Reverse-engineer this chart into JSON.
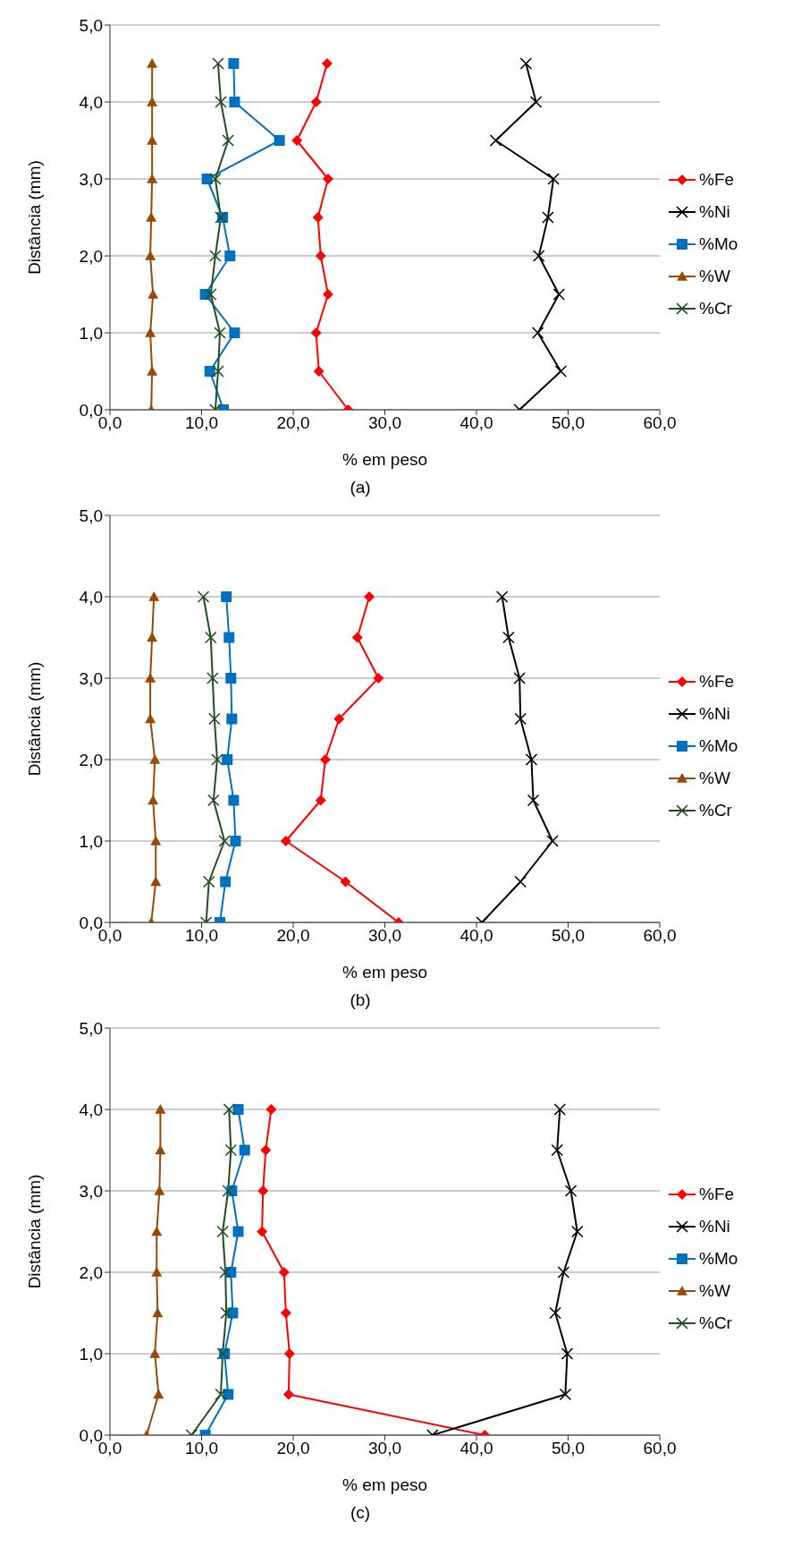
{
  "chart_data": [
    {
      "type": "line",
      "xlabel": "% em peso",
      "ylabel": "Distância (mm)",
      "annotations": [
        "(a)"
      ],
      "xlim": [
        0,
        60
      ],
      "ylim": [
        0,
        5
      ],
      "xticks": [
        {
          "value": 0,
          "label": "0,0"
        },
        {
          "value": 10,
          "label": "10,0"
        },
        {
          "value": 20,
          "label": "20,0"
        },
        {
          "value": 30,
          "label": "30,0"
        },
        {
          "value": 40,
          "label": "40,0"
        },
        {
          "value": 50,
          "label": "50,0"
        },
        {
          "value": 60,
          "label": "60,0"
        }
      ],
      "yticks": [
        {
          "value": 0,
          "label": "0,0"
        },
        {
          "value": 1,
          "label": "1,0"
        },
        {
          "value": 2,
          "label": "2,0"
        },
        {
          "value": 3,
          "label": "3,0"
        },
        {
          "value": 4,
          "label": "4,0"
        },
        {
          "value": 5,
          "label": "5,0"
        }
      ],
      "grid": "y",
      "legend": "right",
      "series": [
        {
          "name": "%Fe",
          "color": "#ff0000",
          "marker": "diamond",
          "x": [
            23.7,
            22.5,
            20.4,
            23.8,
            22.7,
            23.0,
            23.8,
            22.5,
            22.8,
            26.0
          ],
          "values": [
            4.5,
            4.0,
            3.5,
            3.0,
            2.5,
            2.0,
            1.5,
            1.0,
            0.5,
            0
          ]
        },
        {
          "name": "%Ni",
          "color": "#000000",
          "marker": "cross",
          "x": [
            45.4,
            46.5,
            42.1,
            48.4,
            47.8,
            46.8,
            49.0,
            46.7,
            49.2,
            44.7
          ],
          "values": [
            4.5,
            4.0,
            3.5,
            3.0,
            2.5,
            2.0,
            1.5,
            1.0,
            0.5,
            0
          ]
        },
        {
          "name": "%Mo",
          "color": "#0070c0",
          "marker": "square",
          "x": [
            13.5,
            13.6,
            18.5,
            10.6,
            12.3,
            13.1,
            10.4,
            13.6,
            10.9,
            12.4
          ],
          "values": [
            4.5,
            4.0,
            3.5,
            3.0,
            2.5,
            2.0,
            1.5,
            1.0,
            0.5,
            0
          ]
        },
        {
          "name": "%W",
          "color": "#984807",
          "marker": "triangle",
          "x": [
            4.6,
            4.6,
            4.6,
            4.6,
            4.5,
            4.4,
            4.7,
            4.4,
            4.6,
            4.5
          ],
          "values": [
            4.5,
            4.0,
            3.5,
            3.0,
            2.5,
            2.0,
            1.5,
            1.0,
            0.5,
            0
          ]
        },
        {
          "name": "%Cr",
          "color": "#1f4e1f",
          "marker": "cross",
          "x": [
            11.8,
            12.1,
            12.9,
            11.5,
            12.1,
            11.5,
            11.0,
            12.0,
            11.8,
            11.5
          ],
          "values": [
            4.5,
            4.0,
            3.5,
            3.0,
            2.5,
            2.0,
            1.5,
            1.0,
            0.5,
            0
          ]
        }
      ]
    },
    {
      "type": "line",
      "xlabel": "% em peso",
      "ylabel": "Distância (mm)",
      "annotations": [
        "(b)"
      ],
      "xlim": [
        0,
        60
      ],
      "ylim": [
        0,
        5
      ],
      "xticks": [
        {
          "value": 0,
          "label": "0,0"
        },
        {
          "value": 10,
          "label": "10,0"
        },
        {
          "value": 20,
          "label": "20,0"
        },
        {
          "value": 30,
          "label": "30,0"
        },
        {
          "value": 40,
          "label": "40,0"
        },
        {
          "value": 50,
          "label": "50,0"
        },
        {
          "value": 60,
          "label": "60,0"
        }
      ],
      "yticks": [
        {
          "value": 0,
          "label": "0,0"
        },
        {
          "value": 1,
          "label": "1,0"
        },
        {
          "value": 2,
          "label": "2,0"
        },
        {
          "value": 3,
          "label": "3,0"
        },
        {
          "value": 4,
          "label": "4,0"
        },
        {
          "value": 5,
          "label": "5,0"
        }
      ],
      "grid": "y",
      "legend": "right",
      "series": [
        {
          "name": "%Fe",
          "color": "#ff0000",
          "marker": "diamond",
          "x": [
            28.3,
            27.0,
            29.3,
            25.0,
            23.5,
            23.0,
            19.2,
            25.7,
            31.5
          ],
          "values": [
            4.0,
            3.5,
            3.0,
            2.5,
            2.0,
            1.5,
            1.0,
            0.5,
            0
          ]
        },
        {
          "name": "%Ni",
          "color": "#000000",
          "marker": "cross",
          "x": [
            42.8,
            43.5,
            44.7,
            44.8,
            46.0,
            46.2,
            48.3,
            44.8,
            40.6
          ],
          "values": [
            4.0,
            3.5,
            3.0,
            2.5,
            2.0,
            1.5,
            1.0,
            0.5,
            0
          ]
        },
        {
          "name": "%Mo",
          "color": "#0070c0",
          "marker": "square",
          "x": [
            12.7,
            13.0,
            13.2,
            13.3,
            12.8,
            13.5,
            13.7,
            12.6,
            12.0
          ],
          "values": [
            4.0,
            3.5,
            3.0,
            2.5,
            2.0,
            1.5,
            1.0,
            0.5,
            0
          ]
        },
        {
          "name": "%W",
          "color": "#984807",
          "marker": "triangle",
          "x": [
            4.8,
            4.6,
            4.4,
            4.4,
            4.9,
            4.7,
            5.0,
            5.0,
            4.5
          ],
          "values": [
            4.0,
            3.5,
            3.0,
            2.5,
            2.0,
            1.5,
            1.0,
            0.5,
            0
          ]
        },
        {
          "name": "%Cr",
          "color": "#1f4e1f",
          "marker": "cross",
          "x": [
            10.2,
            11.0,
            11.2,
            11.4,
            11.7,
            11.3,
            12.5,
            10.8,
            10.5
          ],
          "values": [
            4.0,
            3.5,
            3.0,
            2.5,
            2.0,
            1.5,
            1.0,
            0.5,
            0
          ]
        }
      ]
    },
    {
      "type": "line",
      "xlabel": "% em peso",
      "ylabel": "Distância (mm)",
      "annotations": [
        "(c)"
      ],
      "xlim": [
        0,
        60
      ],
      "ylim": [
        0,
        5
      ],
      "xticks": [
        {
          "value": 0,
          "label": "0,0"
        },
        {
          "value": 10,
          "label": "10,0"
        },
        {
          "value": 20,
          "label": "20,0"
        },
        {
          "value": 30,
          "label": "30,0"
        },
        {
          "value": 40,
          "label": "40,0"
        },
        {
          "value": 50,
          "label": "50,0"
        },
        {
          "value": 60,
          "label": "60,0"
        }
      ],
      "yticks": [
        {
          "value": 0,
          "label": "0,0"
        },
        {
          "value": 1,
          "label": "1,0"
        },
        {
          "value": 2,
          "label": "2,0"
        },
        {
          "value": 3,
          "label": "3,0"
        },
        {
          "value": 4,
          "label": "4,0"
        },
        {
          "value": 5,
          "label": "5,0"
        }
      ],
      "grid": "y",
      "legend": "right",
      "series": [
        {
          "name": "%Fe",
          "color": "#ff0000",
          "marker": "diamond",
          "x": [
            17.6,
            17.0,
            16.7,
            16.6,
            19.0,
            19.2,
            19.6,
            19.5,
            40.9
          ],
          "values": [
            4.0,
            3.5,
            3.0,
            2.5,
            2.0,
            1.5,
            1.0,
            0.5,
            0
          ]
        },
        {
          "name": "%Ni",
          "color": "#000000",
          "marker": "cross",
          "x": [
            49.1,
            48.8,
            50.3,
            51.0,
            49.5,
            48.6,
            49.9,
            49.7,
            35.2
          ],
          "values": [
            4.0,
            3.5,
            3.0,
            2.5,
            2.0,
            1.5,
            1.0,
            0.5,
            0
          ]
        },
        {
          "name": "%Mo",
          "color": "#0070c0",
          "marker": "square",
          "x": [
            14.0,
            14.7,
            13.3,
            14.0,
            13.2,
            13.4,
            12.5,
            12.9,
            10.4
          ],
          "values": [
            4.0,
            3.5,
            3.0,
            2.5,
            2.0,
            1.5,
            1.0,
            0.5,
            0
          ]
        },
        {
          "name": "%W",
          "color": "#984807",
          "marker": "triangle",
          "x": [
            5.5,
            5.5,
            5.4,
            5.1,
            5.1,
            5.2,
            4.9,
            5.3,
            4.0
          ],
          "values": [
            4.0,
            3.5,
            3.0,
            2.5,
            2.0,
            1.5,
            1.0,
            0.5,
            0
          ]
        },
        {
          "name": "%Cr",
          "color": "#1f4e1f",
          "marker": "cross",
          "x": [
            13.0,
            13.2,
            12.9,
            12.3,
            12.6,
            12.7,
            12.3,
            12.1,
            8.9
          ],
          "values": [
            4.0,
            3.5,
            3.0,
            2.5,
            2.0,
            1.5,
            1.0,
            0.5,
            0
          ]
        }
      ]
    }
  ]
}
